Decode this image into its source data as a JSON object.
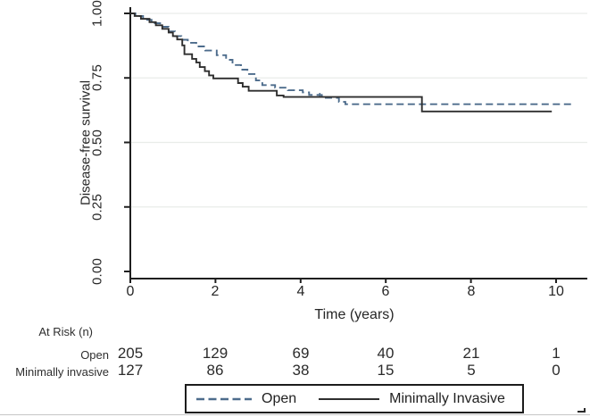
{
  "figure": {
    "y_axis": {
      "title": "Disease-free survival",
      "tick_labels": [
        "1.00",
        "0.75",
        "0.50",
        "0.25",
        "0.00"
      ]
    },
    "x_axis": {
      "title": "Time (years)",
      "tick_labels": [
        "0",
        "2",
        "4",
        "6",
        "8",
        "10"
      ]
    }
  },
  "chart_data": {
    "type": "line",
    "subtype": "kaplan_meier_step",
    "title": "",
    "xlabel": "Time (years)",
    "ylabel": "Disease-free survival",
    "xlim": [
      0,
      10.7
    ],
    "ylim": [
      0.0,
      1.0
    ],
    "x_ticks": [
      0,
      2,
      4,
      6,
      8,
      10
    ],
    "y_ticks": [
      0.0,
      0.25,
      0.5,
      0.75,
      1.0
    ],
    "grid": "horizontal-faint",
    "grid_color": "#e9ece9",
    "axis_color": "#1f1f1f",
    "legend_position": "bottom-center",
    "series": [
      {
        "name": "Open",
        "style": "dashed",
        "color": "#4d6c8c",
        "points": [
          [
            0,
            1.0
          ],
          [
            0.12,
            0.99
          ],
          [
            0.3,
            0.975
          ],
          [
            0.5,
            0.962
          ],
          [
            0.7,
            0.948
          ],
          [
            0.9,
            0.93
          ],
          [
            1.05,
            0.912
          ],
          [
            1.2,
            0.898
          ],
          [
            1.35,
            0.886
          ],
          [
            1.55,
            0.872
          ],
          [
            1.76,
            0.856
          ],
          [
            2.03,
            0.838
          ],
          [
            2.25,
            0.82
          ],
          [
            2.4,
            0.8
          ],
          [
            2.6,
            0.782
          ],
          [
            2.75,
            0.765
          ],
          [
            2.95,
            0.74
          ],
          [
            3.1,
            0.722
          ],
          [
            3.4,
            0.712
          ],
          [
            3.7,
            0.702
          ],
          [
            4.05,
            0.694
          ],
          [
            4.2,
            0.684
          ],
          [
            4.5,
            0.673
          ],
          [
            4.9,
            0.657
          ],
          [
            5.05,
            0.648
          ],
          [
            10.35,
            0.648
          ]
        ],
        "censor_marks": [
          [
            4.45,
            0.678
          ]
        ]
      },
      {
        "name": "Minimally Invasive",
        "style": "solid",
        "color": "#2e2e2e",
        "points": [
          [
            0,
            1.0
          ],
          [
            0.1,
            0.99
          ],
          [
            0.25,
            0.979
          ],
          [
            0.45,
            0.966
          ],
          [
            0.6,
            0.954
          ],
          [
            0.75,
            0.94
          ],
          [
            0.9,
            0.926
          ],
          [
            1.0,
            0.912
          ],
          [
            1.1,
            0.899
          ],
          [
            1.22,
            0.876
          ],
          [
            1.27,
            0.842
          ],
          [
            1.45,
            0.824
          ],
          [
            1.55,
            0.81
          ],
          [
            1.63,
            0.792
          ],
          [
            1.75,
            0.776
          ],
          [
            1.85,
            0.76
          ],
          [
            1.95,
            0.748
          ],
          [
            2.53,
            0.73
          ],
          [
            2.64,
            0.716
          ],
          [
            2.78,
            0.7
          ],
          [
            3.44,
            0.682
          ],
          [
            3.6,
            0.676
          ],
          [
            6.85,
            0.62
          ],
          [
            9.9,
            0.62
          ]
        ],
        "censor_marks": []
      }
    ]
  },
  "at_risk_table": {
    "header": "At Risk (n)",
    "columns": [
      "0",
      "2",
      "4",
      "6",
      "8",
      "10"
    ],
    "rows": [
      {
        "label": "Open",
        "values": [
          "205",
          "129",
          "69",
          "40",
          "21",
          "1"
        ]
      },
      {
        "label": "Minimally invasive",
        "values": [
          "127",
          "86",
          "38",
          "15",
          "5",
          "0"
        ]
      }
    ]
  },
  "legend": {
    "items": [
      {
        "label": "Open",
        "style": "dashed"
      },
      {
        "label": "Minimally Invasive",
        "style": "solid"
      }
    ]
  }
}
